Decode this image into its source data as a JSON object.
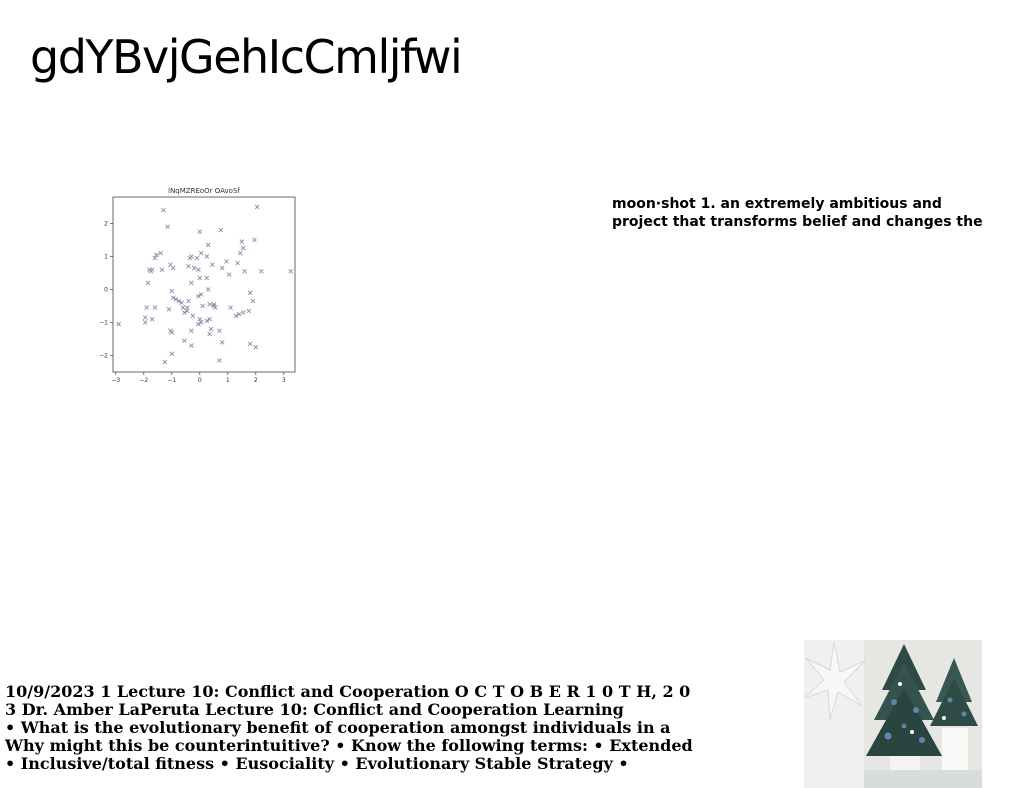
{
  "page": {
    "title": "gdYBvjGehIcCmljfwi"
  },
  "quote": {
    "lines": [
      "moon·shot 1. an extremely ambitious and",
      "project that transforms belief and changes the"
    ]
  },
  "notes": {
    "lines": [
      "10/9/2023 1 Lecture 10: Conflict and Cooperation O C T O B E R 1 0 T H, 2 0",
      "3 Dr. Amber LaPeruta Lecture 10: Conflict and Cooperation Learning",
      "• What is the evolutionary benefit of cooperation amongst individuals in a",
      "Why might this be counterintuitive? • Know the following terms: • Extended",
      "• Inclusive/total fitness • Eusociality • Evolutionary Stable Strategy •"
    ]
  },
  "photo": {
    "subject": "potted evergreen trees with blue ornaments beside a white star",
    "colors": {
      "background": "#e4e4e1",
      "tree": "#2f4a45",
      "ornament": "#5a7fa6"
    }
  },
  "chart_data": {
    "type": "scatter",
    "title": "lNqMZREoOr OAvoSf",
    "xlabel": "",
    "ylabel": "",
    "xlim": [
      -3.1,
      3.4
    ],
    "ylim": [
      -2.5,
      2.8
    ],
    "xticks": [
      "-3",
      "-2",
      "-1",
      "0",
      "1",
      "2",
      "3"
    ],
    "yticks": [
      "2",
      "1",
      "0",
      "-1",
      "-2"
    ],
    "marker": "x",
    "color": "#8a8aa8",
    "grid": false,
    "series": [
      {
        "points": [
          [
            -1.3,
            2.4
          ],
          [
            -1.15,
            1.9
          ],
          [
            -1.4,
            1.1
          ],
          [
            -1.55,
            1.05
          ],
          [
            -1.6,
            0.95
          ],
          [
            -1.8,
            0.6
          ],
          [
            -1.75,
            0.55
          ],
          [
            -1.7,
            0.6
          ],
          [
            -1.85,
            0.2
          ],
          [
            -1.35,
            0.6
          ],
          [
            -1.05,
            0.75
          ],
          [
            -0.95,
            0.65
          ],
          [
            -1.0,
            -0.05
          ],
          [
            -0.95,
            -0.25
          ],
          [
            -0.85,
            -0.3
          ],
          [
            -0.75,
            -0.35
          ],
          [
            -0.65,
            -0.4
          ],
          [
            -1.1,
            -0.6
          ],
          [
            -1.6,
            -0.55
          ],
          [
            -1.9,
            -0.55
          ],
          [
            -1.95,
            -0.85
          ],
          [
            -1.95,
            -1.0
          ],
          [
            -1.7,
            -0.9
          ],
          [
            -2.9,
            -1.05
          ],
          [
            -1.05,
            -1.25
          ],
          [
            -1.0,
            -1.3
          ],
          [
            -0.3,
            -1.25
          ],
          [
            -1.0,
            -1.95
          ],
          [
            -1.25,
            -2.2
          ],
          [
            -0.55,
            -1.55
          ],
          [
            -0.3,
            -1.7
          ],
          [
            -0.6,
            -0.55
          ],
          [
            -0.55,
            -0.7
          ],
          [
            -0.45,
            -0.65
          ],
          [
            -0.45,
            -0.55
          ],
          [
            -0.4,
            -0.35
          ],
          [
            -0.3,
            0.2
          ],
          [
            -0.2,
            0.65
          ],
          [
            -0.1,
            0.95
          ],
          [
            -0.35,
            0.95
          ],
          [
            -0.3,
            1.0
          ],
          [
            -0.4,
            0.7
          ],
          [
            0.0,
            1.75
          ],
          [
            0.3,
            1.35
          ],
          [
            0.05,
            1.1
          ],
          [
            0.25,
            1.0
          ],
          [
            0.75,
            1.8
          ],
          [
            0.45,
            0.75
          ],
          [
            0.8,
            0.65
          ],
          [
            0.95,
            0.85
          ],
          [
            1.05,
            0.45
          ],
          [
            1.35,
            0.8
          ],
          [
            1.55,
            1.25
          ],
          [
            1.45,
            1.1
          ],
          [
            1.5,
            1.45
          ],
          [
            1.95,
            1.5
          ],
          [
            2.05,
            2.5
          ],
          [
            2.2,
            0.55
          ],
          [
            1.6,
            0.55
          ],
          [
            3.25,
            0.55
          ],
          [
            0.0,
            0.35
          ],
          [
            -0.05,
            0.6
          ],
          [
            0.25,
            0.35
          ],
          [
            0.3,
            0.0
          ],
          [
            0.05,
            -0.15
          ],
          [
            -0.05,
            -0.2
          ],
          [
            0.1,
            -0.5
          ],
          [
            -0.25,
            -0.8
          ],
          [
            0.0,
            -0.9
          ],
          [
            0.05,
            -1.0
          ],
          [
            -0.05,
            -1.05
          ],
          [
            0.25,
            -0.95
          ],
          [
            0.35,
            -0.9
          ],
          [
            0.4,
            -1.2
          ],
          [
            0.35,
            -1.35
          ],
          [
            0.5,
            -0.45
          ],
          [
            0.5,
            -0.5
          ],
          [
            0.55,
            -0.55
          ],
          [
            0.35,
            -0.45
          ],
          [
            0.7,
            -1.25
          ],
          [
            0.8,
            -1.6
          ],
          [
            0.7,
            -2.15
          ],
          [
            1.1,
            -0.55
          ],
          [
            1.3,
            -0.8
          ],
          [
            1.4,
            -0.75
          ],
          [
            1.55,
            -0.7
          ],
          [
            1.75,
            -0.65
          ],
          [
            1.8,
            -0.1
          ],
          [
            1.9,
            -0.35
          ],
          [
            1.8,
            -1.65
          ],
          [
            2.0,
            -1.75
          ]
        ]
      }
    ]
  }
}
